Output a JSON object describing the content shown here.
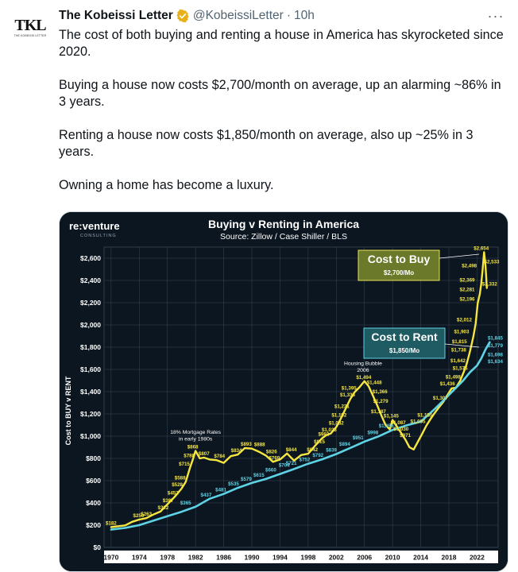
{
  "tweet": {
    "author_name": "The Kobeissi Letter",
    "handle": "@KobeissiLetter",
    "separator": "·",
    "time": "10h",
    "more_label": "···",
    "avatar_text": "TKL",
    "avatar_subtext": "THE KOBEISSI LETTER",
    "paragraphs": [
      "The cost of both buying and renting a house in America has skyrocketed since 2020.",
      "Buying a house now costs $2,700/month on average, up an alarming ~86% in 3 years.",
      "Renting a house now costs $1,850/month on average, also up ~25% in 3 years.",
      "Owning a home has become a luxury."
    ],
    "colors": {
      "verified_badge": "#e8b11c",
      "text": "#0f1419",
      "muted": "#536471"
    }
  },
  "chart_data": {
    "type": "line",
    "title": "Buying v Renting in America",
    "subtitle": "Source: Zillow / Case Shiller / BLS",
    "logo_text": "re:venture",
    "logo_subtext": "CONSULTING",
    "ylabel": "Cost to BUY v RENT",
    "xlabel": "",
    "xlim": [
      1969,
      2025
    ],
    "ylim": [
      0,
      2700
    ],
    "x_ticks": [
      "1970",
      "1974",
      "1978",
      "1982",
      "1986",
      "1990",
      "1994",
      "1998",
      "2002",
      "2006",
      "2010",
      "2014",
      "2018",
      "2022"
    ],
    "y_ticks": [
      "$0",
      "$200",
      "$400",
      "$600",
      "$800",
      "$1,000",
      "$1,200",
      "$1,400",
      "$1,600",
      "$1,800",
      "$2,000",
      "$2,200",
      "$2,400",
      "$2,600"
    ],
    "y_tick_values": [
      0,
      200,
      400,
      600,
      800,
      1000,
      1200,
      1400,
      1600,
      1800,
      2000,
      2200,
      2400,
      2600
    ],
    "grid": true,
    "series": [
      {
        "name": "Cost to Buy",
        "color": "#f5e642",
        "points": [
          [
            1970,
            182
          ],
          [
            1971,
            190
          ],
          [
            1972,
            198
          ],
          [
            1973,
            230
          ],
          [
            1974,
            250
          ],
          [
            1975,
            263
          ],
          [
            1976,
            295
          ],
          [
            1977,
            322
          ],
          [
            1978,
            387
          ],
          [
            1979,
            452
          ],
          [
            1980,
            528
          ],
          [
            1980.6,
            588
          ],
          [
            1981.2,
            715
          ],
          [
            1981.6,
            788
          ],
          [
            1982,
            868
          ],
          [
            1982.6,
            800
          ],
          [
            1983.2,
            807
          ],
          [
            1984,
            790
          ],
          [
            1985,
            784
          ],
          [
            1986,
            760
          ],
          [
            1987,
            820
          ],
          [
            1988,
            834
          ],
          [
            1989,
            893
          ],
          [
            1990,
            888
          ],
          [
            1991,
            860
          ],
          [
            1992,
            826
          ],
          [
            1993,
            769
          ],
          [
            1994,
            790
          ],
          [
            1995,
            844
          ],
          [
            1996,
            780
          ],
          [
            1997,
            830
          ],
          [
            1998,
            842
          ],
          [
            1999,
            915
          ],
          [
            2000,
            982
          ],
          [
            2000.6,
            1010
          ],
          [
            2001.2,
            1023
          ],
          [
            2002,
            1082
          ],
          [
            2002.6,
            1152
          ],
          [
            2003.2,
            1231
          ],
          [
            2004,
            1335
          ],
          [
            2004.6,
            1395
          ],
          [
            2005.3,
            1440
          ],
          [
            2006,
            1494
          ],
          [
            2006.6,
            1448
          ],
          [
            2007.2,
            1366
          ],
          [
            2007.8,
            1279
          ],
          [
            2008.4,
            1187
          ],
          [
            2009,
            1100
          ],
          [
            2009.6,
            1060
          ],
          [
            2010,
            1145
          ],
          [
            2010.6,
            1087
          ],
          [
            2011.2,
            1030
          ],
          [
            2011.8,
            971
          ],
          [
            2012.4,
            900
          ],
          [
            2013,
            880
          ],
          [
            2013.6,
            950
          ],
          [
            2014.2,
            1020
          ],
          [
            2014.8,
            1095
          ],
          [
            2015.4,
            1155
          ],
          [
            2016,
            1210
          ],
          [
            2016.6,
            1260
          ],
          [
            2017.2,
            1307
          ],
          [
            2017.8,
            1370
          ],
          [
            2018.4,
            1430
          ],
          [
            2019,
            1436
          ],
          [
            2019.6,
            1498
          ],
          [
            2020.1,
            1575
          ],
          [
            2020.5,
            1642
          ],
          [
            2020.9,
            1738
          ],
          [
            2021.2,
            1815
          ],
          [
            2021.5,
            1903
          ],
          [
            2021.8,
            2012
          ],
          [
            2022.1,
            2196
          ],
          [
            2022.4,
            2281
          ],
          [
            2022.6,
            2369
          ],
          [
            2022.8,
            2498
          ],
          [
            2023,
            2654
          ],
          [
            2023.2,
            2533
          ],
          [
            2023.4,
            2332
          ]
        ],
        "data_labels": [
          [
            "$182",
            1970,
            182
          ],
          [
            "$250",
            1973.9,
            250
          ],
          [
            "$263",
            1975,
            263
          ],
          [
            "$322",
            1977.4,
            322
          ],
          [
            "$387",
            1978.1,
            387
          ],
          [
            "$452",
            1978.8,
            452
          ],
          [
            "$528",
            1979.4,
            528
          ],
          [
            "$588",
            1979.8,
            588
          ],
          [
            "$715",
            1980.4,
            715
          ],
          [
            "$788",
            1981.1,
            788
          ],
          [
            "$868",
            1981.6,
            868
          ],
          [
            "$807",
            1983.2,
            807
          ],
          [
            "$784",
            1985.4,
            784
          ],
          [
            "$834",
            1987.8,
            834
          ],
          [
            "$893",
            1989.2,
            893
          ],
          [
            "$888",
            1991.1,
            888
          ],
          [
            "$826",
            1992.8,
            826
          ],
          [
            "$769",
            1993.2,
            769
          ],
          [
            "$844",
            1995.6,
            844
          ],
          [
            "$842",
            1998.6,
            842
          ],
          [
            "$915",
            1999.6,
            915
          ],
          [
            "$982",
            2000.2,
            982
          ],
          [
            "$1,023",
            2001,
            1023
          ],
          [
            "$1,082",
            2002,
            1082
          ],
          [
            "$1,152",
            2002.4,
            1152
          ],
          [
            "$1,231",
            2002.8,
            1231
          ],
          [
            "$1,335",
            2003.6,
            1335
          ],
          [
            "$1,395",
            2003.8,
            1395
          ],
          [
            "$1,494",
            2005.9,
            1494
          ],
          [
            "$1,448",
            2007.4,
            1448
          ],
          [
            "$1,366",
            2008.2,
            1366
          ],
          [
            "$1,279",
            2008.3,
            1279
          ],
          [
            "$1,187",
            2008,
            1187
          ],
          [
            "$1,145",
            2009.8,
            1145
          ],
          [
            "$1,087",
            2010.8,
            1087
          ],
          [
            "$1,030",
            2011.2,
            1030
          ],
          [
            "$971",
            2011.8,
            971
          ],
          [
            "$1,095",
            2013.6,
            1095
          ],
          [
            "$1,155",
            2014.6,
            1155
          ],
          [
            "$1,307",
            2016.8,
            1307
          ],
          [
            "$1,436",
            2017.8,
            1436
          ],
          [
            "$1,498",
            2018.6,
            1498
          ],
          [
            "$1,575",
            2019.6,
            1575
          ],
          [
            "$1,642",
            2019.3,
            1642
          ],
          [
            "$1,738",
            2019.4,
            1738
          ],
          [
            "$1,815",
            2019.5,
            1815
          ],
          [
            "$1,903",
            2019.8,
            1903
          ],
          [
            "$2,012",
            2020.2,
            2012
          ],
          [
            "$2,196",
            2020.6,
            2196
          ],
          [
            "$2,281",
            2020.6,
            2281
          ],
          [
            "$2,369",
            2020.6,
            2369
          ],
          [
            "$2,498",
            2020.9,
            2498
          ],
          [
            "$2,654",
            2022.6,
            2654
          ],
          [
            "$2,533",
            2024.1,
            2533
          ],
          [
            "$2,332",
            2023.8,
            2332
          ]
        ]
      },
      {
        "name": "Cost to Rent",
        "color": "#5fd3e6",
        "points": [
          [
            1970,
            160
          ],
          [
            1972,
            175
          ],
          [
            1974,
            200
          ],
          [
            1976,
            240
          ],
          [
            1978,
            280
          ],
          [
            1980,
            320
          ],
          [
            1982,
            365
          ],
          [
            1984,
            437
          ],
          [
            1986,
            481
          ],
          [
            1988,
            535
          ],
          [
            1990,
            579
          ],
          [
            1992,
            615
          ],
          [
            1994,
            660
          ],
          [
            1996,
            704
          ],
          [
            1998,
            752
          ],
          [
            2000,
            792
          ],
          [
            2002,
            839
          ],
          [
            2004,
            894
          ],
          [
            2006,
            951
          ],
          [
            2008,
            998
          ],
          [
            2010,
            1056
          ],
          [
            2012,
            1097
          ],
          [
            2014,
            1130
          ],
          [
            2016,
            1245
          ],
          [
            2018,
            1370
          ],
          [
            2020,
            1498
          ],
          [
            2021,
            1575
          ],
          [
            2022,
            1634
          ],
          [
            2022.6,
            1698
          ],
          [
            2023.2,
            1779
          ],
          [
            2023.8,
            1845
          ]
        ],
        "data_labels": [
          [
            "$365",
            1980.6,
            365
          ],
          [
            "$437",
            1983.5,
            437
          ],
          [
            "$481",
            1985.6,
            481
          ],
          [
            "$535",
            1987.4,
            535
          ],
          [
            "$579",
            1989.2,
            579
          ],
          [
            "$615",
            1991,
            615
          ],
          [
            "$660",
            1992.7,
            660
          ],
          [
            "$704",
            1994.6,
            704
          ],
          [
            "$721",
            1995.6,
            721
          ],
          [
            "$752",
            1997.5,
            752
          ],
          [
            "$792",
            1999.4,
            792
          ],
          [
            "$839",
            2001.3,
            839
          ],
          [
            "$894",
            2003.2,
            894
          ],
          [
            "$951",
            2005.1,
            951
          ],
          [
            "$998",
            2007.2,
            998
          ],
          [
            "$1,056",
            2009.1,
            1056
          ],
          [
            "$1,845",
            2024.6,
            1845
          ],
          [
            "$1,779",
            2024.6,
            1779
          ],
          [
            "$1,698",
            2024.6,
            1698
          ],
          [
            "$1,634",
            2024.6,
            1634
          ]
        ]
      }
    ],
    "annotations": [
      {
        "text": "18% Mortgage Rates",
        "x": 1982,
        "y": 1020
      },
      {
        "text": "in early 1980s",
        "x": 1982,
        "y": 960
      },
      {
        "text": "Housing Bubble",
        "x": 2005.8,
        "y": 1640
      },
      {
        "text": "2006",
        "x": 2005.8,
        "y": 1580
      }
    ],
    "callouts": [
      {
        "title": "Cost to Buy",
        "value": "$2,700/Mo",
        "color": "#6b7a2a",
        "border": "#e7e35a"
      },
      {
        "title": "Cost to Rent",
        "value": "$1,850/Mo",
        "color": "#1f5b62",
        "border": "#5fd3e6"
      }
    ],
    "colors": {
      "background": "#0c1620",
      "grid": "#3a4656",
      "text": "#ffffff"
    }
  }
}
